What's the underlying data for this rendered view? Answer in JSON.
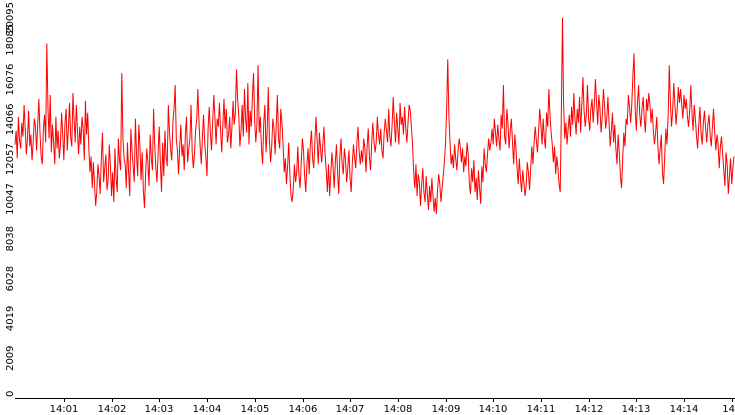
{
  "chart_data": {
    "type": "line",
    "title": "",
    "xlabel": "",
    "ylabel": "",
    "x_ticks": [
      "14:01",
      "14:02",
      "14:03",
      "14:04",
      "14:05",
      "14:06",
      "14:07",
      "14:08",
      "14:09",
      "14:10",
      "14:11",
      "14:12",
      "14:13",
      "14:14",
      "14"
    ],
    "y_ticks": [
      "0",
      "2009",
      "4019",
      "6028",
      "8038",
      "10047",
      "12057",
      "14066",
      "16076",
      "18085",
      "20095"
    ],
    "ylim": [
      0,
      20095
    ],
    "grid": false,
    "legend": "none",
    "series": [
      {
        "color": "#ff0000",
        "values": [
          12800,
          13500,
          12100,
          14200,
          13000,
          12600,
          13900,
          13200,
          14800,
          13600,
          12300,
          13100,
          14500,
          12700,
          13300,
          12000,
          12900,
          14100,
          13700,
          12500,
          13800,
          15100,
          13400,
          12200,
          11800,
          13600,
          14300,
          12900,
          17900,
          14700,
          13100,
          15300,
          12400,
          13800,
          12900,
          11800,
          14200,
          12600,
          13500,
          12100,
          12800,
          14400,
          13300,
          12000,
          13900,
          14600,
          12500,
          13600,
          14900,
          13200,
          12700,
          15400,
          14100,
          12900,
          14800,
          13500,
          12300,
          13700,
          12800,
          14200,
          13600,
          12000,
          15000,
          13300,
          14400,
          12600,
          11400,
          12200,
          10600,
          11900,
          10800,
          9700,
          10400,
          11800,
          11200,
          10300,
          12100,
          13400,
          10900,
          11600,
          12300,
          10500,
          11000,
          12800,
          11700,
          10200,
          11400,
          9900,
          12600,
          11100,
          10400,
          13100,
          12000,
          11500,
          16400,
          13200,
          12100,
          11800,
          10600,
          12900,
          11400,
          10200,
          13600,
          12500,
          11700,
          10900,
          14100,
          12300,
          11200,
          13800,
          12700,
          11000,
          12400,
          10500,
          9600,
          11300,
          12600,
          11900,
          10700,
          13300,
          12100,
          11500,
          14600,
          12800,
          11600,
          10900,
          12400,
          13700,
          11800,
          10400,
          12900,
          11200,
          13500,
          12200,
          11700,
          14800,
          13400,
          12600,
          12000,
          13900,
          14600,
          15800,
          13100,
          12500,
          11300,
          12700,
          13800,
          12200,
          12800,
          11500,
          13300,
          14200,
          11900,
          12600,
          13100,
          14800,
          12400,
          11600,
          12300,
          13500,
          14100,
          15600,
          13900,
          12700,
          11800,
          13200,
          14300,
          12900,
          12200,
          11200,
          13600,
          14700,
          13400,
          12500,
          13900,
          15300,
          14200,
          12800,
          14100,
          13700,
          14900,
          13500,
          12400,
          13800,
          15100,
          13600,
          14600,
          12900,
          13300,
          14200,
          12600,
          13700,
          15000,
          13800,
          14400,
          16600,
          15100,
          14300,
          12700,
          13500,
          14800,
          13200,
          15600,
          14100,
          13400,
          15900,
          12800,
          14500,
          13700,
          15200,
          16400,
          14000,
          12900,
          13800,
          16800,
          13400,
          14200,
          12600,
          11800,
          13900,
          14800,
          12400,
          13500,
          15700,
          13000,
          11900,
          12700,
          14100,
          13600,
          12300,
          13800,
          15300,
          13100,
          12600,
          14600,
          13900,
          12800,
          11400,
          12100,
          10800,
          11700,
          12900,
          11300,
          10200,
          9900,
          10600,
          11800,
          10900,
          11400,
          12700,
          11200,
          10600,
          11900,
          13100,
          12500,
          11200,
          10400,
          11800,
          12600,
          11300,
          12800,
          13500,
          12100,
          11600,
          12900,
          14200,
          13000,
          11800,
          13400,
          12600,
          11900,
          12800,
          13700,
          12300,
          11500,
          10400,
          11800,
          10200,
          11300,
          12400,
          11700,
          10600,
          11900,
          12800,
          11400,
          10300,
          12200,
          13100,
          11800,
          11300,
          12600,
          12000,
          10900,
          11600,
          12500,
          11100,
          10400,
          11900,
          12800,
          12100,
          11600,
          12900,
          13700,
          12400,
          11800,
          12500,
          11900,
          13100,
          12600,
          11400,
          12700,
          13600,
          12200,
          11500,
          12800,
          13900,
          13000,
          12400,
          12900,
          14200,
          13300,
          12800,
          13600,
          12500,
          12100,
          13400,
          14100,
          13500,
          12900,
          14600,
          13200,
          12700,
          13800,
          15200,
          13900,
          12900,
          14400,
          13600,
          12800,
          14900,
          13800,
          14200,
          13300,
          14700,
          13600,
          12900,
          13900,
          14800,
          14500,
          13700,
          12800,
          11400,
          10600,
          11800,
          10200,
          11300,
          10900,
          9700,
          10800,
          11600,
          10400,
          9900,
          11200,
          10300,
          9500,
          10700,
          9900,
          11100,
          10200,
          9400,
          10100,
          9300,
          10500,
          11300,
          10800,
          9900,
          10600,
          11200,
          11900,
          12800,
          14500,
          17100,
          14200,
          12900,
          11800,
          12300,
          11600,
          12800,
          12100,
          11500,
          12400,
          13100,
          12700,
          11900,
          12600,
          11400,
          12200,
          11700,
          12900,
          12300,
          10800,
          10300,
          11600,
          10900,
          12000,
          10400,
          11100,
          10000,
          11500,
          10600,
          9800,
          11700,
          10900,
          12600,
          11800,
          11400,
          12300,
          13100,
          12500,
          12900,
          13600,
          12800,
          14100,
          13400,
          12700,
          13800,
          13100,
          12500,
          14300,
          13600,
          15800,
          13200,
          12800,
          14600,
          13900,
          12600,
          13500,
          14100,
          12900,
          11800,
          13300,
          12600,
          11600,
          10800,
          12100,
          11100,
          10400,
          11500,
          10900,
          10200,
          10700,
          11900,
          11400,
          10500,
          11600,
          12700,
          11800,
          12900,
          13700,
          13000,
          12400,
          13500,
          14600,
          13800,
          12800,
          14100,
          13100,
          12600,
          14400,
          13700,
          15600,
          14300,
          13400,
          12800,
          11900,
          12700,
          11300,
          12200,
          11600,
          10800,
          10400,
          14500,
          19200,
          14800,
          13100,
          13900,
          12800,
          13600,
          14300,
          13200,
          14700,
          13800,
          15400,
          14100,
          13300,
          14600,
          13900,
          15200,
          13400,
          14800,
          16200,
          14500,
          13700,
          14300,
          15800,
          14100,
          13500,
          14600,
          15100,
          13900,
          14800,
          16100,
          14900,
          13800,
          15300,
          14600,
          13400,
          14200,
          15600,
          14800,
          13600,
          14100,
          15200,
          13900,
          12700,
          13500,
          14400,
          12900,
          13800,
          12600,
          11800,
          13300,
          12400,
          11200,
          10600,
          12100,
          13400,
          12700,
          14100,
          13800,
          15300,
          14700,
          13900,
          14800,
          16300,
          17400,
          14600,
          13500,
          14900,
          15800,
          14300,
          13700,
          14600,
          15200,
          14100,
          13400,
          15100,
          14500,
          15400,
          14800,
          13900,
          14600,
          13500,
          12800,
          13400,
          14200,
          12700,
          11800,
          12600,
          13300,
          11400,
          10800,
          12200,
          13600,
          12800,
          14200,
          16800,
          14900,
          13700,
          14500,
          15900,
          14800,
          13800,
          14600,
          15700,
          14900,
          15600,
          14800,
          14100,
          15300,
          14600,
          15100,
          14200,
          13700,
          14500,
          15800,
          14400,
          13500,
          14800,
          14100,
          13200,
          12600,
          13800,
          14700,
          13400,
          12800,
          13900,
          14500,
          13600,
          12900,
          13800,
          14300,
          13300,
          12700,
          13700,
          14600,
          13400,
          12500,
          13300,
          12800,
          11600,
          12700,
          13200,
          12300,
          11500,
          10700,
          12400,
          11800,
          10300,
          11200,
          12100,
          10800,
          11600,
          12200
        ]
      }
    ]
  }
}
